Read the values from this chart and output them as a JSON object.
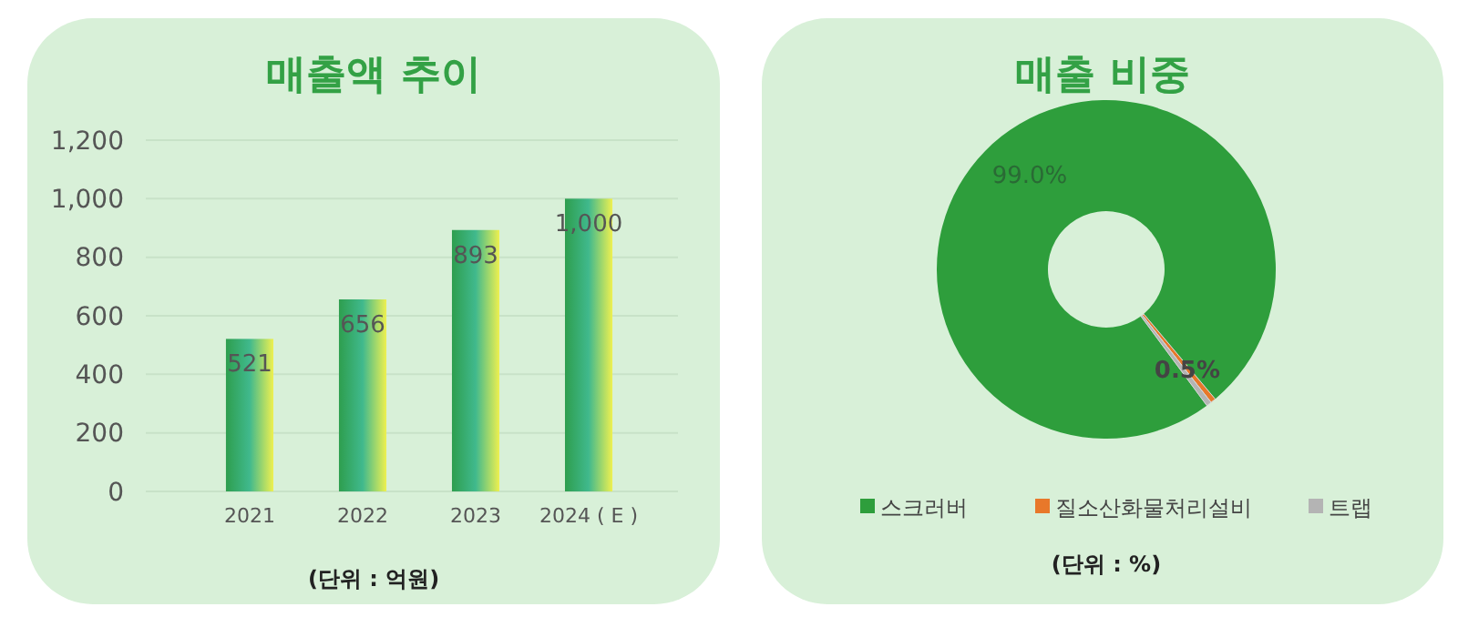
{
  "chart_data": [
    {
      "type": "bar",
      "title": "매출액 추이",
      "categories": [
        "2021",
        "2022",
        "2023",
        "2024 ( E )"
      ],
      "values": [
        521,
        656,
        893,
        1000
      ],
      "color": "#2e9e4e",
      "value_labels": [
        "521",
        "656",
        "893",
        "1,000"
      ],
      "ylim": [
        0,
        1200
      ],
      "yticks": [
        0,
        200,
        400,
        600,
        800,
        {
          "value": 1000,
          "label": "1,000"
        },
        {
          "value": 1200,
          "label": "1,200"
        }
      ],
      "grid": "y",
      "annotations": [
        "(단위 : 억원)"
      ]
    },
    {
      "type": "donut",
      "title": "매출 비중",
      "categories": [
        "스크러버",
        "질소산화물처리설비",
        "트랩"
      ],
      "values": [
        99.0,
        0.5,
        0.5
      ],
      "colors": [
        "#2e9e3c",
        "#e8782a",
        "#b4b4b4"
      ],
      "value_labels": [
        "99.0%",
        "0.5%",
        null
      ],
      "legend": "bottom",
      "annotations": [
        "(단위 : %)"
      ]
    }
  ]
}
